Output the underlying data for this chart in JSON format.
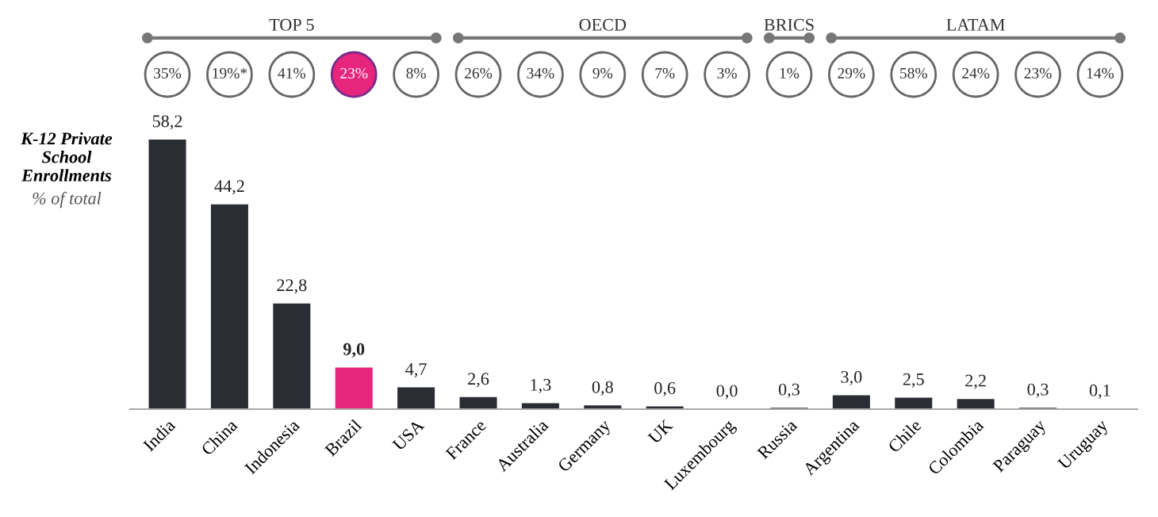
{
  "chart_data": {
    "type": "bar",
    "title": "K-12 Private School Enrollments",
    "subtitle": "% of total",
    "categories": [
      "India",
      "China",
      "Indonesia",
      "Brazil",
      "USA",
      "France",
      "Australia",
      "Germany",
      "UK",
      "Luxembourg",
      "Russia",
      "Argentina",
      "Chile",
      "Colombia",
      "Paraguay",
      "Uruguay"
    ],
    "values": [
      58.2,
      44.2,
      22.8,
      9.0,
      4.7,
      2.6,
      1.3,
      0.8,
      0.6,
      0.0,
      0.3,
      3.0,
      2.5,
      2.2,
      0.3,
      0.1
    ],
    "value_labels": [
      "58,2",
      "44,2",
      "22,8",
      "9,0",
      "4,7",
      "2,6",
      "1,3",
      "0,8",
      "0,6",
      "0,0",
      "0,3",
      "3,0",
      "2,5",
      "2,2",
      "0,3",
      "0,1"
    ],
    "colors": [
      "#2b2d35",
      "#2b2d35",
      "#2b2d35",
      "#e8257d",
      "#2b2d35",
      "#2b2d35",
      "#2b2d35",
      "#2b2d35",
      "#2b2d35",
      "#2b2d35",
      "#2b2d35",
      "#2b2d35",
      "#2b2d35",
      "#2b2d35",
      "#2b2d35",
      "#2b2d35"
    ],
    "annotations": [
      "35%",
      "19%*",
      "41%",
      "23%",
      "8%",
      "26%",
      "34%",
      "9%",
      "7%",
      "3%",
      "1%",
      "29%",
      "58%",
      "24%",
      "23%",
      "14%",
      "TOP 5",
      "OECD",
      "BRICS",
      "LATAM"
    ],
    "tick_labels": "x"
  }
}
